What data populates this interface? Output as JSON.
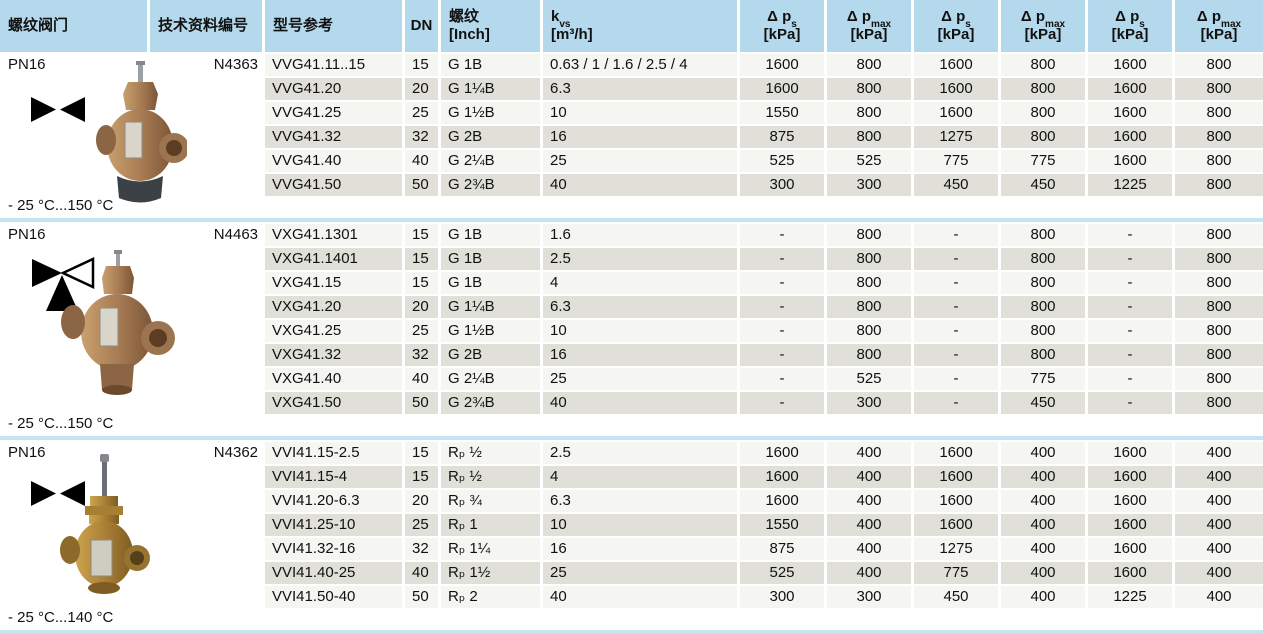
{
  "header": {
    "valve_col": "螺纹阀门",
    "doc_col": "技术资料编号",
    "model_col": "型号参考",
    "dn_col": "DN",
    "thread_col": {
      "line1": "螺纹",
      "line2": "[Inch]"
    },
    "kvs_col": {
      "base": "k",
      "sub": "vs",
      "line2": "[m³/h]"
    },
    "pressure_cols": [
      {
        "base": "Δ p",
        "sub": "s",
        "unit": "[kPa]"
      },
      {
        "base": "Δ p",
        "sub": "max",
        "unit": "[kPa]"
      },
      {
        "base": "Δ p",
        "sub": "s",
        "unit": "[kPa]"
      },
      {
        "base": "Δ p",
        "sub": "max",
        "unit": "[kPa]"
      },
      {
        "base": "Δ p",
        "sub": "s",
        "unit": "[kPa]"
      },
      {
        "base": "Δ p",
        "sub": "max",
        "unit": "[kPa]"
      }
    ]
  },
  "sections": [
    {
      "pn": "PN16",
      "doc_no": "N4363",
      "symbol": "two-way-valve-icon",
      "photo": "bronze-globe-valve-photo",
      "temp_range": "- 25 °C...150 °C",
      "rows": [
        {
          "model": "VVG41.11..15",
          "dn": "15",
          "thread": "G 1B",
          "kvs": "0.63 / 1 / 1.6 / 2.5 / 4",
          "values": [
            "1600",
            "800",
            "1600",
            "800",
            "1600",
            "800"
          ]
        },
        {
          "model": "VVG41.20",
          "dn": "20",
          "thread": "G 1¼B",
          "kvs": "6.3",
          "values": [
            "1600",
            "800",
            "1600",
            "800",
            "1600",
            "800"
          ]
        },
        {
          "model": "VVG41.25",
          "dn": "25",
          "thread": "G 1½B",
          "kvs": "10",
          "values": [
            "1550",
            "800",
            "1600",
            "800",
            "1600",
            "800"
          ]
        },
        {
          "model": "VVG41.32",
          "dn": "32",
          "thread": "G 2B",
          "kvs": "16",
          "values": [
            "875",
            "800",
            "1275",
            "800",
            "1600",
            "800"
          ]
        },
        {
          "model": "VVG41.40",
          "dn": "40",
          "thread": "G 2¼B",
          "kvs": "25",
          "values": [
            "525",
            "525",
            "775",
            "775",
            "1600",
            "800"
          ]
        },
        {
          "model": "VVG41.50",
          "dn": "50",
          "thread": "G 2¾B",
          "kvs": "40",
          "values": [
            "300",
            "300",
            "450",
            "450",
            "1225",
            "800"
          ]
        }
      ]
    },
    {
      "pn": "PN16",
      "doc_no": "N4463",
      "symbol": "three-way-valve-icon",
      "photo": "bronze-three-way-valve-photo",
      "temp_range": "- 25 °C...150 °C",
      "rows": [
        {
          "model": "VXG41.1301",
          "dn": "15",
          "thread": "G 1B",
          "kvs": "1.6",
          "values": [
            "-",
            "800",
            "-",
            "800",
            "-",
            "800"
          ]
        },
        {
          "model": "VXG41.1401",
          "dn": "15",
          "thread": "G 1B",
          "kvs": "2.5",
          "values": [
            "-",
            "800",
            "-",
            "800",
            "-",
            "800"
          ]
        },
        {
          "model": "VXG41.15",
          "dn": "15",
          "thread": "G 1B",
          "kvs": "4",
          "values": [
            "-",
            "800",
            "-",
            "800",
            "-",
            "800"
          ]
        },
        {
          "model": "VXG41.20",
          "dn": "20",
          "thread": "G 1¼B",
          "kvs": "6.3",
          "values": [
            "-",
            "800",
            "-",
            "800",
            "-",
            "800"
          ]
        },
        {
          "model": "VXG41.25",
          "dn": "25",
          "thread": "G 1½B",
          "kvs": "10",
          "values": [
            "-",
            "800",
            "-",
            "800",
            "-",
            "800"
          ]
        },
        {
          "model": "VXG41.32",
          "dn": "32",
          "thread": "G 2B",
          "kvs": "16",
          "values": [
            "-",
            "800",
            "-",
            "800",
            "-",
            "800"
          ]
        },
        {
          "model": "VXG41.40",
          "dn": "40",
          "thread": "G 2¼B",
          "kvs": "25",
          "values": [
            "-",
            "525",
            "-",
            "775",
            "-",
            "800"
          ]
        },
        {
          "model": "VXG41.50",
          "dn": "50",
          "thread": "G 2¾B",
          "kvs": "40",
          "values": [
            "-",
            "300",
            "-",
            "450",
            "-",
            "800"
          ]
        }
      ]
    },
    {
      "pn": "PN16",
      "doc_no": "N4362",
      "symbol": "two-way-valve-icon",
      "photo": "brass-stem-valve-photo",
      "temp_range": "- 25 °C...140 °C",
      "rows": [
        {
          "model": "VVI41.15-2.5",
          "dn": "15",
          "thread": "Rₚ ½",
          "kvs": "2.5",
          "values": [
            "1600",
            "400",
            "1600",
            "400",
            "1600",
            "400"
          ]
        },
        {
          "model": "VVI41.15-4",
          "dn": "15",
          "thread": "Rₚ ½",
          "kvs": "4",
          "values": [
            "1600",
            "400",
            "1600",
            "400",
            "1600",
            "400"
          ]
        },
        {
          "model": "VVI41.20-6.3",
          "dn": "20",
          "thread": "Rₚ ¾",
          "kvs": "6.3",
          "values": [
            "1600",
            "400",
            "1600",
            "400",
            "1600",
            "400"
          ]
        },
        {
          "model": "VVI41.25-10",
          "dn": "25",
          "thread": "Rₚ 1",
          "kvs": "10",
          "values": [
            "1550",
            "400",
            "1600",
            "400",
            "1600",
            "400"
          ]
        },
        {
          "model": "VVI41.32-16",
          "dn": "32",
          "thread": "Rₚ 1¼",
          "kvs": "16",
          "values": [
            "875",
            "400",
            "1275",
            "400",
            "1600",
            "400"
          ]
        },
        {
          "model": "VVI41.40-25",
          "dn": "40",
          "thread": "Rₚ 1½",
          "kvs": "25",
          "values": [
            "525",
            "400",
            "775",
            "400",
            "1600",
            "400"
          ]
        },
        {
          "model": "VVI41.50-40",
          "dn": "50",
          "thread": "Rₚ 2",
          "kvs": "40",
          "values": [
            "300",
            "300",
            "450",
            "400",
            "1225",
            "400"
          ]
        }
      ]
    }
  ],
  "colors": {
    "header_bg": "#b4d9ec",
    "divider": "#c6e3f2",
    "row_shaded": "#e0e0d8",
    "row_plain": "#f5f5f1"
  }
}
